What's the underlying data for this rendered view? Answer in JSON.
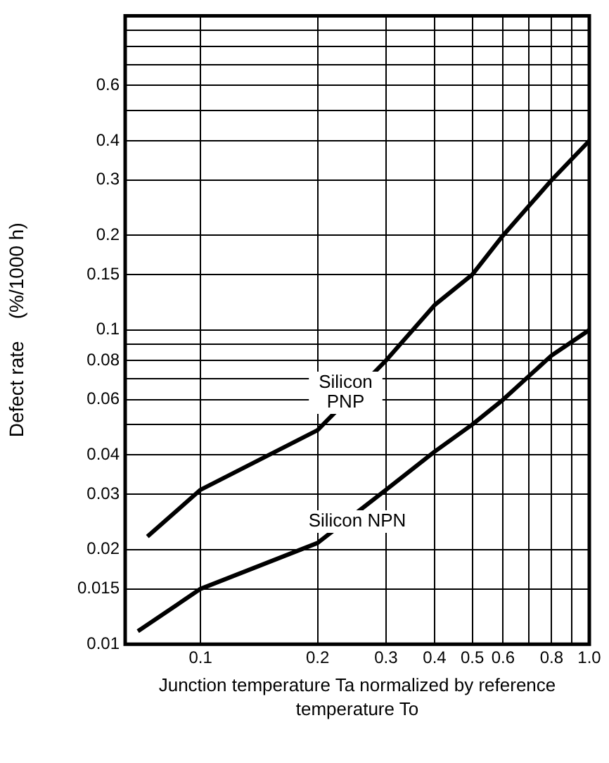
{
  "chart_data": {
    "type": "line",
    "xlabel": "Junction temperature Ta normalized by reference temperature To",
    "ylabel": "Defect rate    (%/1000 h)",
    "log": "xy",
    "grid": true,
    "legend": false,
    "marker": "none",
    "line_style": "solid",
    "xlim": [
      0.064,
      1.0
    ],
    "xticks": [
      0.1,
      0.2,
      0.3,
      0.4,
      0.5,
      0.6,
      {
        "value": 0.7,
        "label": null
      },
      0.8,
      {
        "value": 0.9,
        "label": null
      },
      {
        "value": 1.0,
        "label": "1.0"
      }
    ],
    "ylim": [
      0.01,
      1.0
    ],
    "yticks": [
      0.01,
      0.015,
      0.02,
      0.03,
      0.04,
      {
        "value": 0.05,
        "label": null
      },
      0.06,
      {
        "value": 0.07,
        "label": null
      },
      0.08,
      {
        "value": 0.09,
        "label": null
      },
      0.1,
      0.15,
      0.2,
      0.3,
      0.4,
      {
        "value": 0.5,
        "label": null
      },
      0.6,
      {
        "value": 0.7,
        "label": null
      },
      {
        "value": 0.8,
        "label": null
      },
      {
        "value": 0.9,
        "label": null
      }
    ],
    "series": [
      {
        "name": "Silicon PNP",
        "color": "#000000",
        "x": [
          0.073,
          0.1,
          0.2,
          0.3,
          0.4,
          0.5,
          0.6,
          0.8,
          1.0
        ],
        "values": [
          0.022,
          0.031,
          0.048,
          0.08,
          0.12,
          0.15,
          0.2,
          0.3,
          0.4
        ]
      },
      {
        "name": "Silicon NPN",
        "color": "#000000",
        "x": [
          0.069,
          0.1,
          0.2,
          0.3,
          0.4,
          0.5,
          0.6,
          0.8,
          1.0
        ],
        "values": [
          0.011,
          0.015,
          0.021,
          0.031,
          0.041,
          0.05,
          0.06,
          0.083,
          0.1
        ]
      }
    ]
  }
}
